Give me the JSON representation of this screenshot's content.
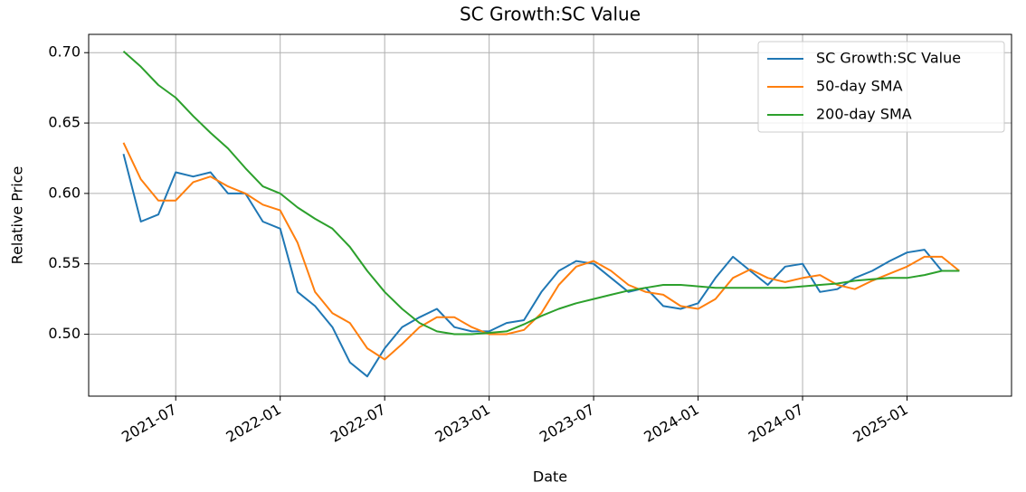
{
  "chart_data": {
    "type": "line",
    "title": "SC Growth:SC Value",
    "x_label": "Date",
    "y_label": "Relative Price",
    "x": [
      "2021-04",
      "2021-05",
      "2021-06",
      "2021-07",
      "2021-08",
      "2021-09",
      "2021-10",
      "2021-11",
      "2021-12",
      "2022-01",
      "2022-02",
      "2022-03",
      "2022-04",
      "2022-05",
      "2022-06",
      "2022-07",
      "2022-08",
      "2022-09",
      "2022-10",
      "2022-11",
      "2022-12",
      "2023-01",
      "2023-02",
      "2023-03",
      "2023-04",
      "2023-05",
      "2023-06",
      "2023-07",
      "2023-08",
      "2023-09",
      "2023-10",
      "2023-11",
      "2023-12",
      "2024-01",
      "2024-02",
      "2024-03",
      "2024-04",
      "2024-05",
      "2024-06",
      "2024-07",
      "2024-08",
      "2024-09",
      "2024-10",
      "2024-11",
      "2024-12",
      "2025-01",
      "2025-02",
      "2025-03",
      "2025-04"
    ],
    "series": [
      {
        "name": "SC Growth:SC Value",
        "color": "#1f77b4",
        "values": [
          0.628,
          0.58,
          0.585,
          0.615,
          0.612,
          0.615,
          0.6,
          0.6,
          0.58,
          0.575,
          0.53,
          0.52,
          0.505,
          0.48,
          0.47,
          0.49,
          0.505,
          0.512,
          0.518,
          0.505,
          0.502,
          0.502,
          0.508,
          0.51,
          0.53,
          0.545,
          0.552,
          0.55,
          0.54,
          0.53,
          0.533,
          0.52,
          0.518,
          0.522,
          0.54,
          0.555,
          0.545,
          0.535,
          0.548,
          0.55,
          0.53,
          0.532,
          0.54,
          0.545,
          0.552,
          0.558,
          0.56,
          0.545,
          0.545
        ]
      },
      {
        "name": "50-day SMA",
        "color": "#ff7f0e",
        "values": [
          0.636,
          0.61,
          0.595,
          0.595,
          0.608,
          0.612,
          0.605,
          0.6,
          0.592,
          0.588,
          0.565,
          0.53,
          0.515,
          0.508,
          0.49,
          0.482,
          0.493,
          0.505,
          0.512,
          0.512,
          0.505,
          0.5,
          0.5,
          0.503,
          0.515,
          0.535,
          0.548,
          0.552,
          0.545,
          0.535,
          0.53,
          0.528,
          0.52,
          0.518,
          0.525,
          0.54,
          0.546,
          0.54,
          0.537,
          0.54,
          0.542,
          0.535,
          0.532,
          0.538,
          0.543,
          0.548,
          0.555,
          0.555,
          0.545
        ]
      },
      {
        "name": "200-day SMA",
        "color": "#2ca02c",
        "values": [
          0.701,
          0.69,
          0.677,
          0.668,
          0.655,
          0.643,
          0.632,
          0.618,
          0.605,
          0.6,
          0.59,
          0.582,
          0.575,
          0.562,
          0.545,
          0.53,
          0.518,
          0.508,
          0.502,
          0.5,
          0.5,
          0.501,
          0.502,
          0.507,
          0.513,
          0.518,
          0.522,
          0.525,
          0.528,
          0.531,
          0.533,
          0.535,
          0.535,
          0.534,
          0.533,
          0.533,
          0.533,
          0.533,
          0.533,
          0.534,
          0.535,
          0.536,
          0.538,
          0.539,
          0.54,
          0.54,
          0.542,
          0.545,
          0.545
        ]
      }
    ],
    "xlim": [
      "2021-02",
      "2025-07"
    ],
    "xticks": [
      "2021-07",
      "2022-01",
      "2022-07",
      "2023-01",
      "2023-07",
      "2024-01",
      "2024-07",
      "2025-01"
    ],
    "ylim": [
      0.456,
      0.713
    ],
    "yticks": [
      {
        "value": 0.5,
        "label": "0.50"
      },
      0.55,
      {
        "value": 0.6,
        "label": "0.60"
      },
      0.65,
      {
        "value": 0.7,
        "label": "0.70"
      }
    ],
    "grid": true,
    "legend": "upper right"
  }
}
